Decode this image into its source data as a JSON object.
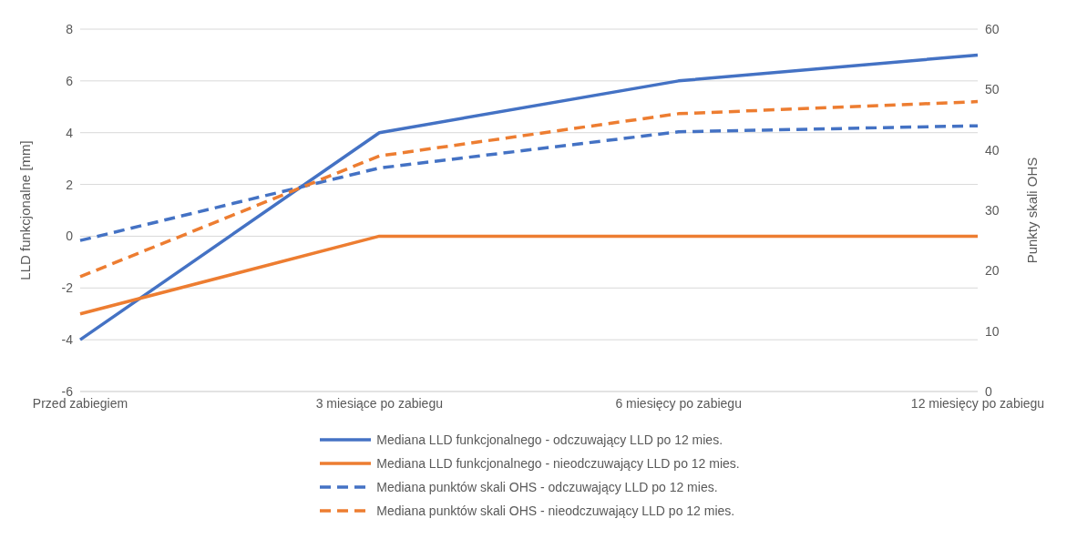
{
  "chart_data": {
    "type": "line",
    "ylabel": "LLD funkcjonalne [mm]",
    "y2label": "Punkty skali OHS",
    "categories": [
      "Przed zabiegiem",
      "3 miesiące po zabiegu",
      "6 miesięcy po zabiegu",
      "12 miesięcy po zabiegu"
    ],
    "series": [
      {
        "name": "Mediana LLD funkcjonalnego - odczuwający LLD po 12 mies.",
        "color": "#4472c4",
        "values": [
          -4,
          4,
          6,
          7
        ],
        "line_style": "solid"
      },
      {
        "name": "Mediana LLD funkcjonalnego - nieodczuwający LLD po 12 mies.",
        "color": "#ed7d31",
        "values": [
          -3,
          0,
          0,
          0
        ],
        "line_style": "solid"
      },
      {
        "name": "Mediana punktów skali OHS - odczuwający LLD po 12 mies.",
        "color": "#4472c4",
        "values": [
          25,
          37,
          43,
          44
        ],
        "axis": "y2",
        "line_style": "dashed"
      },
      {
        "name": "Mediana punktów skali OHS - nieodczuwający LLD po 12 mies.",
        "color": "#ed7d31",
        "values": [
          19,
          39,
          46,
          48
        ],
        "axis": "y2",
        "line_style": "dashed"
      }
    ],
    "ylim": [
      -6,
      8
    ],
    "yticks": [
      -6,
      -4,
      -2,
      0,
      2,
      4,
      6,
      8
    ],
    "y2lim": [
      0,
      60
    ],
    "y2ticks": [
      0,
      10,
      20,
      30,
      40,
      50,
      60
    ],
    "grid": "y",
    "legend": "bottom",
    "marker": "none"
  }
}
